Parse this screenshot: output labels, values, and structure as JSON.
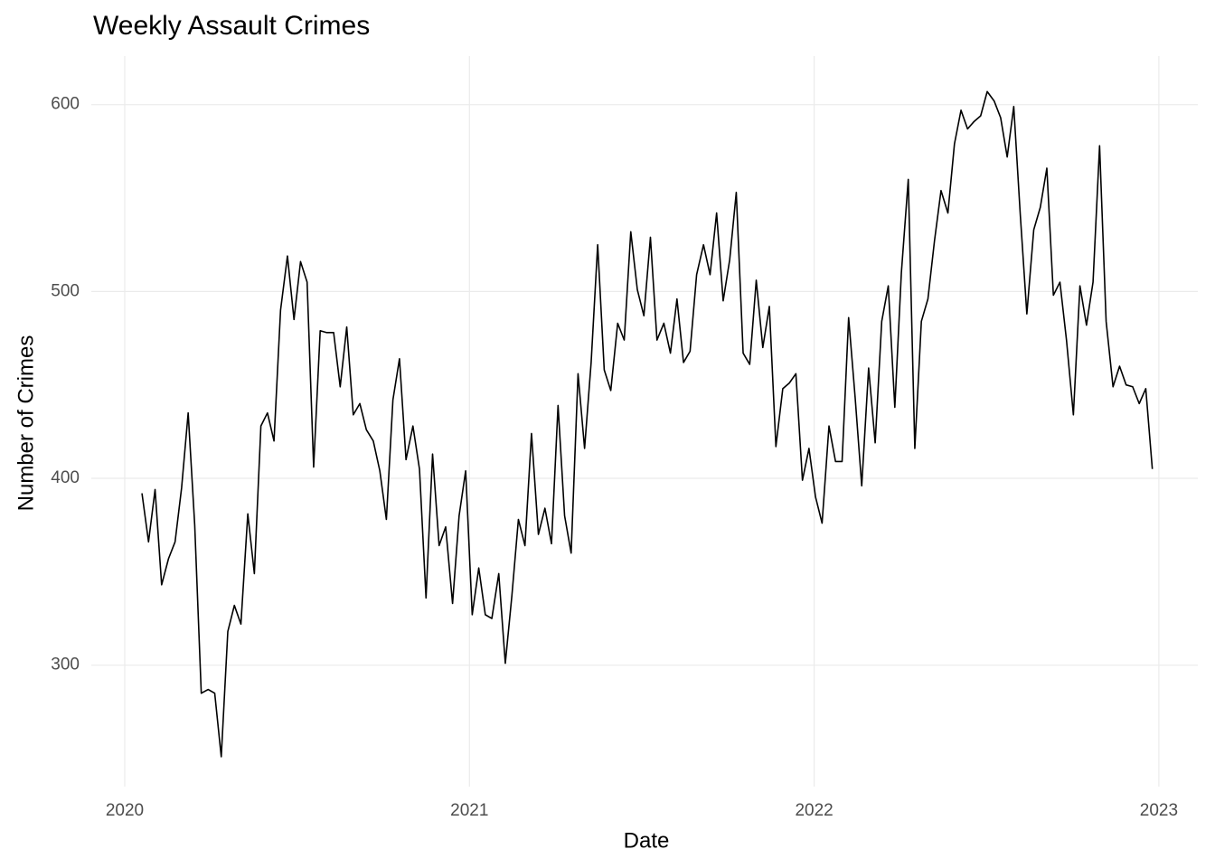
{
  "chart_data": {
    "type": "line",
    "title": "Weekly Assault Crimes",
    "x_label": "Date",
    "y_label": "Number of Crimes",
    "x": [
      2020.05,
      2020.069,
      2020.088,
      2020.107,
      2020.127,
      2020.146,
      2020.165,
      2020.184,
      2020.203,
      2020.222,
      2020.242,
      2020.261,
      2020.28,
      2020.299,
      2020.318,
      2020.337,
      2020.357,
      2020.376,
      2020.395,
      2020.414,
      2020.433,
      2020.452,
      2020.472,
      2020.491,
      2020.51,
      2020.529,
      2020.548,
      2020.567,
      2020.586,
      2020.606,
      2020.625,
      2020.644,
      2020.663,
      2020.682,
      2020.701,
      2020.721,
      2020.74,
      2020.759,
      2020.778,
      2020.797,
      2020.816,
      2020.836,
      2020.855,
      2020.874,
      2020.893,
      2020.912,
      2020.931,
      2020.951,
      2020.97,
      2020.989,
      2021.008,
      2021.027,
      2021.046,
      2021.065,
      2021.085,
      2021.104,
      2021.123,
      2021.142,
      2021.161,
      2021.18,
      2021.2,
      2021.219,
      2021.238,
      2021.257,
      2021.276,
      2021.295,
      2021.315,
      2021.334,
      2021.353,
      2021.372,
      2021.391,
      2021.41,
      2021.43,
      2021.449,
      2021.468,
      2021.487,
      2021.506,
      2021.525,
      2021.544,
      2021.564,
      2021.583,
      2021.602,
      2021.621,
      2021.64,
      2021.659,
      2021.679,
      2021.698,
      2021.717,
      2021.736,
      2021.755,
      2021.774,
      2021.794,
      2021.813,
      2021.832,
      2021.851,
      2021.87,
      2021.889,
      2021.909,
      2021.928,
      2021.947,
      2021.966,
      2021.985,
      2022.004,
      2022.023,
      2022.043,
      2022.062,
      2022.081,
      2022.1,
      2022.119,
      2022.138,
      2022.158,
      2022.177,
      2022.196,
      2022.215,
      2022.234,
      2022.253,
      2022.273,
      2022.292,
      2022.311,
      2022.33,
      2022.349,
      2022.368,
      2022.388,
      2022.407,
      2022.426,
      2022.445,
      2022.464,
      2022.483,
      2022.502,
      2022.522,
      2022.541,
      2022.56,
      2022.579,
      2022.598,
      2022.617,
      2022.637,
      2022.656,
      2022.675,
      2022.694,
      2022.713,
      2022.732,
      2022.752,
      2022.771,
      2022.79,
      2022.809,
      2022.828,
      2022.847,
      2022.867,
      2022.886,
      2022.905,
      2022.924,
      2022.943,
      2022.962,
      2022.981
    ],
    "series": [
      {
        "color": "#000000",
        "values": [
          392,
          366,
          394,
          343,
          357,
          366,
          395,
          435,
          375,
          285,
          287,
          285,
          251,
          318,
          332,
          322,
          381,
          349,
          428,
          435,
          420,
          490,
          519,
          485,
          516,
          505,
          406,
          479,
          478,
          478,
          449,
          481,
          434,
          440,
          426,
          420,
          404,
          378,
          442,
          464,
          410,
          428,
          405,
          336,
          413,
          364,
          374,
          333,
          380,
          404,
          327,
          352,
          327,
          325,
          349,
          301,
          337,
          378,
          364,
          424,
          370,
          384,
          365,
          439,
          380,
          360,
          456,
          416,
          462,
          525,
          458,
          447,
          483,
          474,
          532,
          501,
          487,
          529,
          474,
          483,
          467,
          496,
          462,
          468,
          509,
          525,
          509,
          542,
          495,
          517,
          553,
          467,
          461,
          506,
          470,
          492,
          417,
          448,
          451,
          456,
          399,
          416,
          390,
          376,
          428,
          409,
          409,
          486,
          443,
          396,
          459,
          419,
          484,
          503,
          438,
          510,
          560,
          416,
          484,
          496,
          527,
          554,
          542,
          579,
          597,
          587,
          591,
          594,
          607,
          602,
          593,
          572,
          599,
          541,
          488,
          533,
          545,
          566,
          498,
          505,
          474,
          434,
          503,
          482,
          505,
          578,
          484,
          449,
          460,
          450,
          449,
          440,
          448,
          405
        ]
      }
    ],
    "xlim": [
      2019.903,
      2023.113
    ],
    "xticks": [
      2020,
      2021,
      2022,
      2023
    ],
    "ylim": [
      235,
      626
    ],
    "yticks": [
      300,
      400,
      500,
      600
    ],
    "grid": true
  }
}
